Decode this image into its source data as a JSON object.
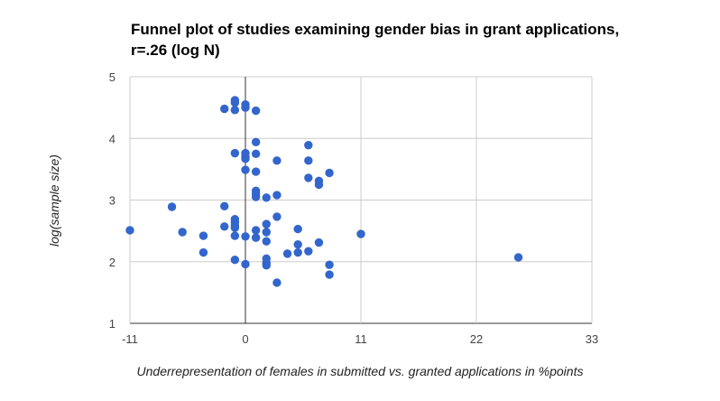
{
  "chart_data": {
    "type": "scatter",
    "title_lines": [
      "Funnel plot of studies examining gender bias in grant applications,",
      "r=.26 (log N)"
    ],
    "xlabel": "Underrepresentation of females in submitted vs. granted applications in %points",
    "ylabel": "log(sample size)",
    "xlim": [
      -11,
      33
    ],
    "ylim": [
      1,
      5
    ],
    "x_ticks": [
      -11,
      0,
      11,
      22,
      33
    ],
    "y_ticks": [
      1,
      2,
      3,
      4,
      5
    ],
    "grid": true,
    "legend": "none",
    "point_color": "#3366cc",
    "points": [
      [
        -1,
        4.62
      ],
      [
        -1,
        4.58
      ],
      [
        0,
        4.55
      ],
      [
        0,
        4.5
      ],
      [
        -2,
        4.48
      ],
      [
        -1,
        4.46
      ],
      [
        1,
        4.45
      ],
      [
        1,
        3.94
      ],
      [
        6,
        3.89
      ],
      [
        -1,
        3.76
      ],
      [
        0,
        3.76
      ],
      [
        1,
        3.75
      ],
      [
        0,
        3.7
      ],
      [
        0,
        3.67
      ],
      [
        3,
        3.64
      ],
      [
        6,
        3.64
      ],
      [
        0,
        3.49
      ],
      [
        1,
        3.46
      ],
      [
        8,
        3.44
      ],
      [
        6,
        3.36
      ],
      [
        7,
        3.31
      ],
      [
        7,
        3.25
      ],
      [
        1,
        3.15
      ],
      [
        1,
        3.1
      ],
      [
        3,
        3.08
      ],
      [
        1,
        3.05
      ],
      [
        2,
        3.04
      ],
      [
        -7,
        2.89
      ],
      [
        -2,
        2.9
      ],
      [
        3,
        2.73
      ],
      [
        -1,
        2.69
      ],
      [
        -1,
        2.64
      ],
      [
        2,
        2.61
      ],
      [
        -1,
        2.59
      ],
      [
        -2,
        2.57
      ],
      [
        -1,
        2.55
      ],
      [
        5,
        2.53
      ],
      [
        -11,
        2.51
      ],
      [
        1,
        2.51
      ],
      [
        -6,
        2.48
      ],
      [
        2,
        2.48
      ],
      [
        -4,
        2.42
      ],
      [
        -1,
        2.42
      ],
      [
        0,
        2.41
      ],
      [
        1,
        2.39
      ],
      [
        2,
        2.33
      ],
      [
        7,
        2.31
      ],
      [
        5,
        2.28
      ],
      [
        6,
        2.17
      ],
      [
        -4,
        2.15
      ],
      [
        4,
        2.13
      ],
      [
        5,
        2.15
      ],
      [
        11,
        2.45
      ],
      [
        26,
        2.07
      ],
      [
        2,
        2.05
      ],
      [
        -1,
        2.03
      ],
      [
        2,
        1.98
      ],
      [
        0,
        1.96
      ],
      [
        2,
        1.94
      ],
      [
        8,
        1.95
      ],
      [
        8,
        1.79
      ],
      [
        3,
        1.66
      ]
    ]
  }
}
